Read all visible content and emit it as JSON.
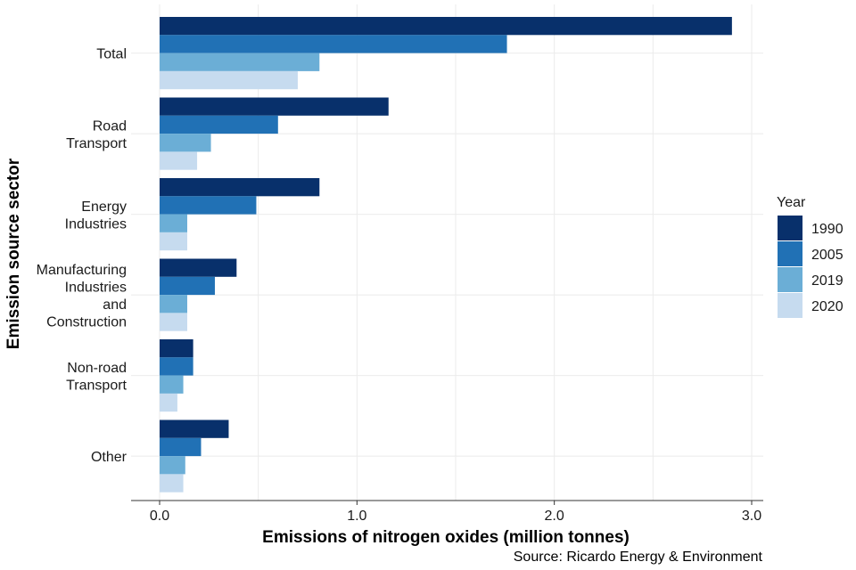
{
  "chart_data": {
    "type": "bar",
    "orientation": "horizontal",
    "title": "",
    "xlabel": "Emissions of nitrogen oxides (million tonnes)",
    "ylabel": "Emission source sector",
    "caption": "Source: Ricardo Energy & Environment",
    "xlim": [
      0,
      3.0
    ],
    "x_ticks": [
      0.0,
      1.0,
      2.0,
      3.0
    ],
    "x_tick_labels": [
      "0.0",
      "1.0",
      "2.0",
      "3.0"
    ],
    "grid": true,
    "legend": {
      "title": "Year",
      "position": "right"
    },
    "categories": [
      [
        "Total"
      ],
      [
        "Road",
        "Transport"
      ],
      [
        "Energy",
        "Industries"
      ],
      [
        "Manufacturing",
        "Industries",
        "and",
        "Construction"
      ],
      [
        "Non-road",
        "Transport"
      ],
      [
        "Other"
      ]
    ],
    "series": [
      {
        "name": "1990",
        "color": "#08306b",
        "values": [
          2.9,
          1.16,
          0.81,
          0.39,
          0.17,
          0.35
        ]
      },
      {
        "name": "2005",
        "color": "#2171b5",
        "values": [
          1.76,
          0.6,
          0.49,
          0.28,
          0.17,
          0.21
        ]
      },
      {
        "name": "2019",
        "color": "#6baed6",
        "values": [
          0.81,
          0.26,
          0.14,
          0.14,
          0.12,
          0.13
        ]
      },
      {
        "name": "2020",
        "color": "#c6dbef",
        "values": [
          0.7,
          0.19,
          0.14,
          0.14,
          0.09,
          0.12
        ]
      }
    ]
  }
}
